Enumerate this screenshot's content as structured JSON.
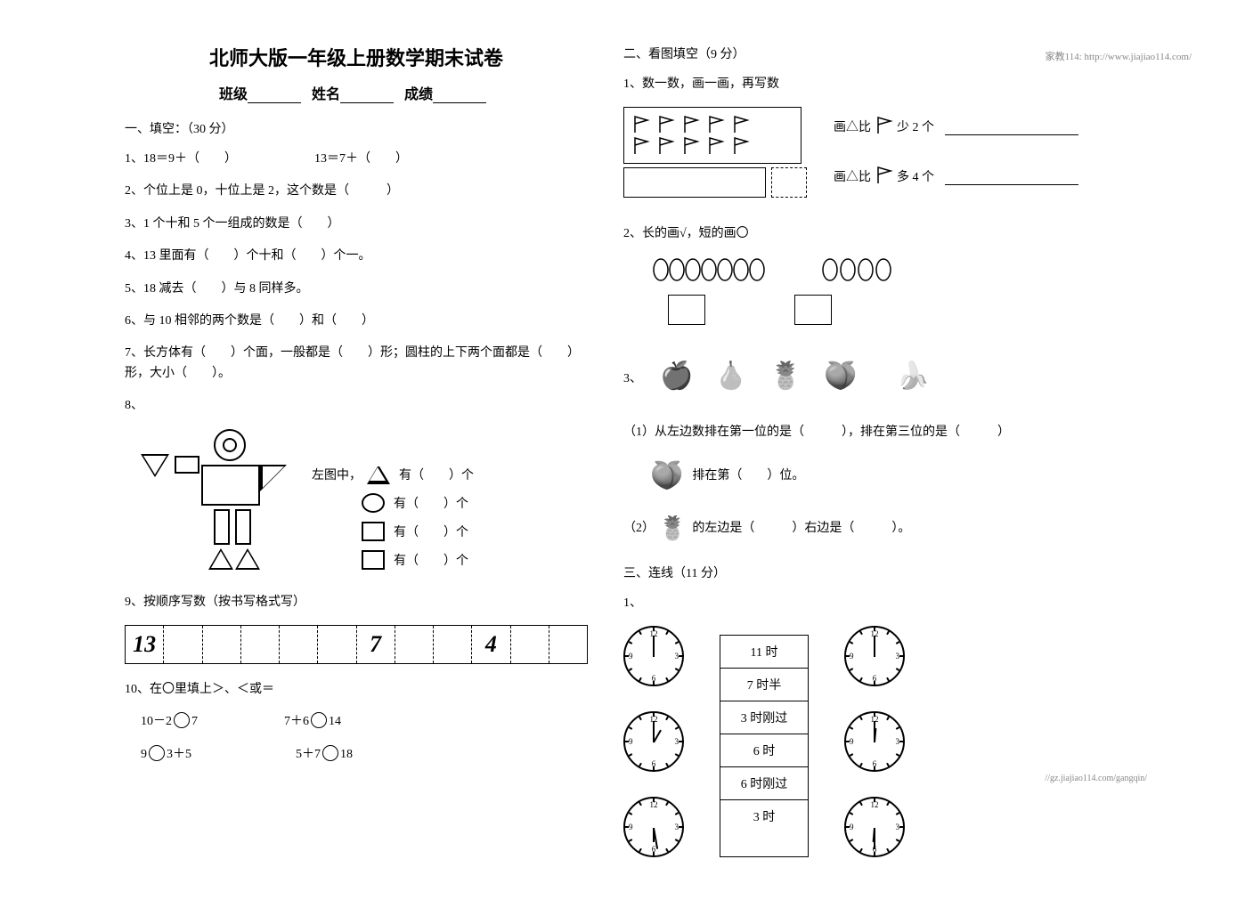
{
  "header_url": "家教114: http://www.jiajiao114.com/",
  "footer_url": "//gz.jiajiao114.com/gangqin/",
  "title": "北师大版一年级上册数学期末试卷",
  "info_labels": {
    "class": "班级",
    "name": "姓名",
    "score": "成绩"
  },
  "section1": {
    "heading": "一、填空：（30 分）",
    "q1a": "1、18＝9＋（　　）",
    "q1b": "13＝7＋（　　）",
    "q2": "2、个位上是 0，十位上是 2，这个数是（　　　）",
    "q3": "3、1 个十和 5 个一组成的数是（　　）",
    "q4": "4、13 里面有（　　）个十和（　　）个一。",
    "q5": "5、18 减去（　　）与 8 同样多。",
    "q6": "6、与 10 相邻的两个数是（　　）和（　　）",
    "q7": "7、长方体有（　　）个面，一般都是（　　）形；圆柱的上下两个面都是（　　）形，大小（　　）。",
    "q8_intro": "8、",
    "q8_label": "左图中，",
    "q8_rows": {
      "tri": "有（　　）个",
      "circ": "有（　　）个",
      "sq": "有（　　）个",
      "rect": "有（　　）个"
    },
    "q9": "9、按顺序写数（按书写格式写）",
    "strip_values": [
      "13",
      "",
      "",
      "",
      "",
      "",
      "7",
      "",
      "",
      "4",
      "",
      ""
    ],
    "q10": "10、在〇里填上＞、＜或＝",
    "q10_rows": [
      {
        "a": "10－2",
        "b": "7",
        "c": "7＋6",
        "d": "14"
      },
      {
        "a": "9",
        "b": "3＋5",
        "c": "5＋7",
        "d": "18"
      }
    ]
  },
  "section2": {
    "heading": "二、看图填空（9 分）",
    "q1": "1、数一数，画一画，再写数",
    "q1_right1": "画△比",
    "q1_right1b": "少 2 个",
    "q1_right2": "画△比",
    "q1_right2b": "多 4 个",
    "q2": "2、长的画√，短的画〇",
    "q3_label": "3、",
    "q3_1": "（1）从左边数排在第一位的是（　　　），排在第三位的是（　　　）",
    "q3_mid": "排在第（　　）位。",
    "q3_2": "（2）　　的左边是（　　　）右边是（　　　）。"
  },
  "section3": {
    "heading": "三、连线（11 分）",
    "q1": "1、",
    "times": [
      "11 时",
      "7 时半",
      "3 时刚过",
      "6 时",
      "6 时刚过",
      "3 时"
    ],
    "clocks_left_angles": [
      {
        "h": -90,
        "m": -90
      },
      {
        "h": -60,
        "m": -90
      },
      {
        "h": 90,
        "m": 80
      }
    ],
    "clocks_right_angles": [
      {
        "h": -90,
        "m": -90
      },
      {
        "h": -85,
        "m": -90
      },
      {
        "h": 95,
        "m": 90
      }
    ]
  },
  "colors": {
    "text": "#000000",
    "bg": "#ffffff",
    "faint": "#888888"
  }
}
